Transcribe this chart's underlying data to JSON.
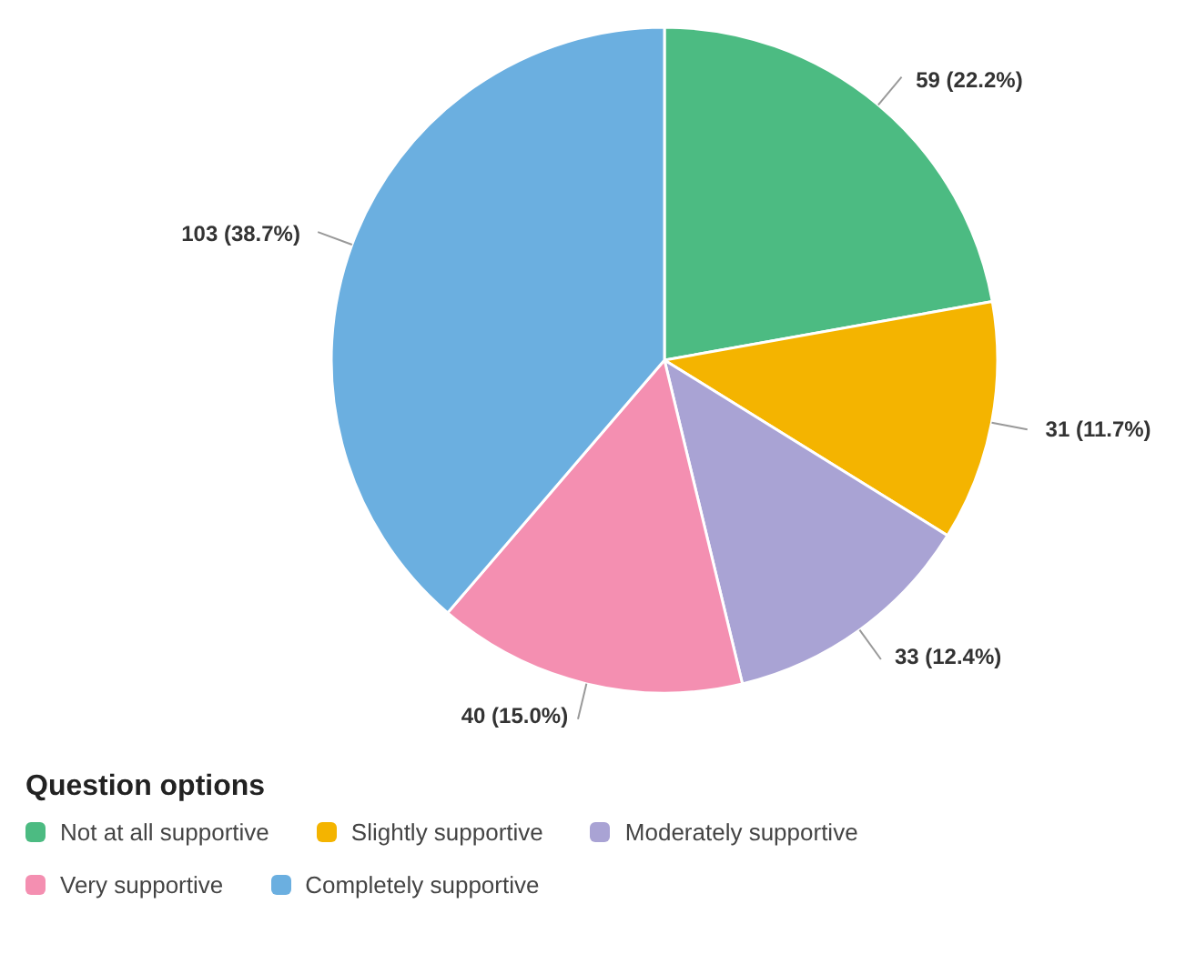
{
  "chart_data": {
    "type": "pie",
    "legend_title": "Question options",
    "legend": "bottom",
    "categories": [
      "Not at all supportive",
      "Slightly supportive",
      "Moderately supportive",
      "Very supportive",
      "Completely supportive"
    ],
    "values": [
      59,
      31,
      33,
      40,
      103
    ],
    "colors": [
      "#4cbb82",
      "#f4b400",
      "#a9a3d4",
      "#f48fb1",
      "#6bafe0"
    ],
    "value_labels": [
      "59 (22.2%)",
      "31 (11.7%)",
      "33 (12.4%)",
      "40 (15.0%)",
      "103 (38.7%)"
    ]
  }
}
